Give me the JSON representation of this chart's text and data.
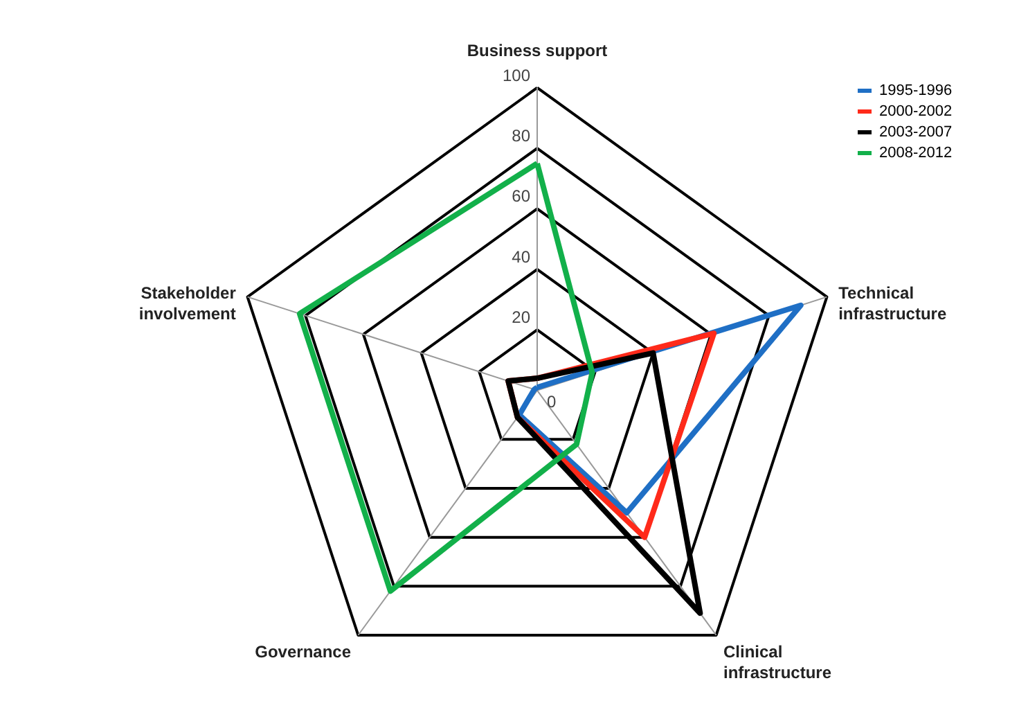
{
  "chart_data": {
    "type": "radar",
    "categories": [
      "Business support",
      "Technical infrastructure",
      "Clinical infrastructure",
      "Governance",
      "Stakeholder involvement"
    ],
    "series": [
      {
        "name": "1995-1996",
        "color": "#1f6fc5",
        "values": [
          1,
          91,
          50,
          10,
          1
        ]
      },
      {
        "name": "2000-2002",
        "color": "#ff2a1a",
        "values": [
          4,
          61,
          60,
          11,
          10
        ]
      },
      {
        "name": "2003-2007",
        "color": "#000000",
        "values": [
          4,
          40,
          91,
          11,
          10
        ]
      },
      {
        "name": "2008-2012",
        "color": "#12b04a",
        "values": [
          75,
          19,
          22,
          82,
          82
        ]
      }
    ],
    "ylim": [
      0,
      100
    ],
    "yticks": [
      0,
      20,
      40,
      60,
      80,
      100
    ],
    "grid": true,
    "legend": "right"
  }
}
